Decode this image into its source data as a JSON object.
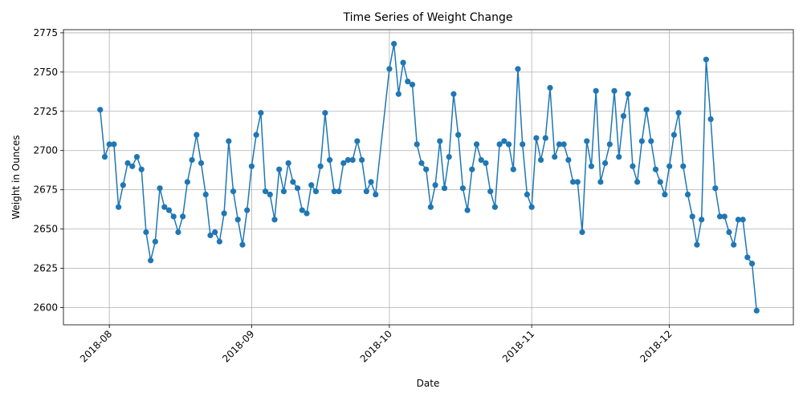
{
  "chart_data": {
    "type": "line",
    "title": "Time Series of Weight Change",
    "x_label": "Date",
    "y_label": "Weight in Ounces",
    "color": "#1f77b4",
    "grid": true,
    "x": [
      "2018-07-30",
      "2018-07-31",
      "2018-08-01",
      "2018-08-02",
      "2018-08-03",
      "2018-08-04",
      "2018-08-05",
      "2018-08-06",
      "2018-08-07",
      "2018-08-08",
      "2018-08-09",
      "2018-08-10",
      "2018-08-11",
      "2018-08-12",
      "2018-08-13",
      "2018-08-14",
      "2018-08-15",
      "2018-08-16",
      "2018-08-17",
      "2018-08-18",
      "2018-08-19",
      "2018-08-20",
      "2018-08-21",
      "2018-08-22",
      "2018-08-23",
      "2018-08-24",
      "2018-08-25",
      "2018-08-26",
      "2018-08-27",
      "2018-08-28",
      "2018-08-29",
      "2018-08-30",
      "2018-08-31",
      "2018-09-01",
      "2018-09-02",
      "2018-09-03",
      "2018-09-04",
      "2018-09-05",
      "2018-09-06",
      "2018-09-07",
      "2018-09-08",
      "2018-09-09",
      "2018-09-10",
      "2018-09-11",
      "2018-09-12",
      "2018-09-13",
      "2018-09-14",
      "2018-09-15",
      "2018-09-16",
      "2018-09-17",
      "2018-09-18",
      "2018-09-19",
      "2018-09-20",
      "2018-09-21",
      "2018-09-22",
      "2018-09-23",
      "2018-09-24",
      "2018-09-25",
      "2018-09-26",
      "2018-09-27",
      "2018-09-28",
      "2018-10-01",
      "2018-10-02",
      "2018-10-03",
      "2018-10-04",
      "2018-10-05",
      "2018-10-06",
      "2018-10-07",
      "2018-10-08",
      "2018-10-09",
      "2018-10-10",
      "2018-10-11",
      "2018-10-12",
      "2018-10-13",
      "2018-10-14",
      "2018-10-15",
      "2018-10-16",
      "2018-10-17",
      "2018-10-18",
      "2018-10-19",
      "2018-10-20",
      "2018-10-21",
      "2018-10-22",
      "2018-10-23",
      "2018-10-24",
      "2018-10-25",
      "2018-10-26",
      "2018-10-27",
      "2018-10-28",
      "2018-10-29",
      "2018-10-30",
      "2018-10-31",
      "2018-11-01",
      "2018-11-02",
      "2018-11-03",
      "2018-11-04",
      "2018-11-05",
      "2018-11-06",
      "2018-11-07",
      "2018-11-08",
      "2018-11-09",
      "2018-11-10",
      "2018-11-11",
      "2018-11-12",
      "2018-11-13",
      "2018-11-14",
      "2018-11-15",
      "2018-11-16",
      "2018-11-17",
      "2018-11-18",
      "2018-11-19",
      "2018-11-20",
      "2018-11-21",
      "2018-11-22",
      "2018-11-23",
      "2018-11-24",
      "2018-11-25",
      "2018-11-26",
      "2018-11-27",
      "2018-11-28",
      "2018-11-29",
      "2018-11-30",
      "2018-12-01",
      "2018-12-02",
      "2018-12-03",
      "2018-12-04",
      "2018-12-05",
      "2018-12-06",
      "2018-12-07",
      "2018-12-08",
      "2018-12-09",
      "2018-12-10",
      "2018-12-11",
      "2018-12-12",
      "2018-12-13",
      "2018-12-14",
      "2018-12-15",
      "2018-12-16",
      "2018-12-17",
      "2018-12-18",
      "2018-12-19",
      "2018-12-20"
    ],
    "values": [
      2726,
      2696,
      2704,
      2704,
      2664,
      2678,
      2692,
      2690,
      2696,
      2688,
      2648,
      2630,
      2642,
      2676,
      2664,
      2662,
      2658,
      2648,
      2658,
      2680,
      2694,
      2710,
      2692,
      2672,
      2646,
      2648,
      2642,
      2660,
      2706,
      2674,
      2656,
      2640,
      2662,
      2690,
      2710,
      2724,
      2674,
      2672,
      2656,
      2688,
      2674,
      2692,
      2680,
      2676,
      2662,
      2660,
      2678,
      2674,
      2690,
      2724,
      2694,
      2674,
      2674,
      2692,
      2694,
      2694,
      2706,
      2694,
      2674,
      2680,
      2672,
      2752,
      2768,
      2736,
      2756,
      2744,
      2742,
      2704,
      2692,
      2688,
      2664,
      2678,
      2706,
      2676,
      2696,
      2736,
      2710,
      2676,
      2662,
      2688,
      2704,
      2694,
      2692,
      2674,
      2664,
      2704,
      2706,
      2704,
      2688,
      2752,
      2704,
      2672,
      2664,
      2708,
      2694,
      2708,
      2740,
      2696,
      2704,
      2704,
      2694,
      2680,
      2680,
      2648,
      2706,
      2690,
      2738,
      2680,
      2692,
      2704,
      2738,
      2696,
      2722,
      2736,
      2690,
      2680,
      2706,
      2726,
      2706,
      2688,
      2680,
      2672,
      2690,
      2710,
      2724,
      2690,
      2672,
      2658,
      2640,
      2656,
      2758,
      2720,
      2676,
      2658,
      2658,
      2648,
      2640,
      2656,
      2656,
      2632,
      2628,
      2598
    ],
    "xlim": [
      "2018-07-22",
      "2018-12-28"
    ],
    "xticks": [
      {
        "value": "2018-08-01",
        "label": "2018-08"
      },
      {
        "value": "2018-09-01",
        "label": "2018-09"
      },
      {
        "value": "2018-10-01",
        "label": "2018-10"
      },
      {
        "value": "2018-11-01",
        "label": "2018-11"
      },
      {
        "value": "2018-12-01",
        "label": "2018-12"
      }
    ],
    "ylim": [
      2589,
      2777
    ],
    "yticks": [
      2600,
      2625,
      2650,
      2675,
      2700,
      2725,
      2750,
      2775
    ]
  }
}
